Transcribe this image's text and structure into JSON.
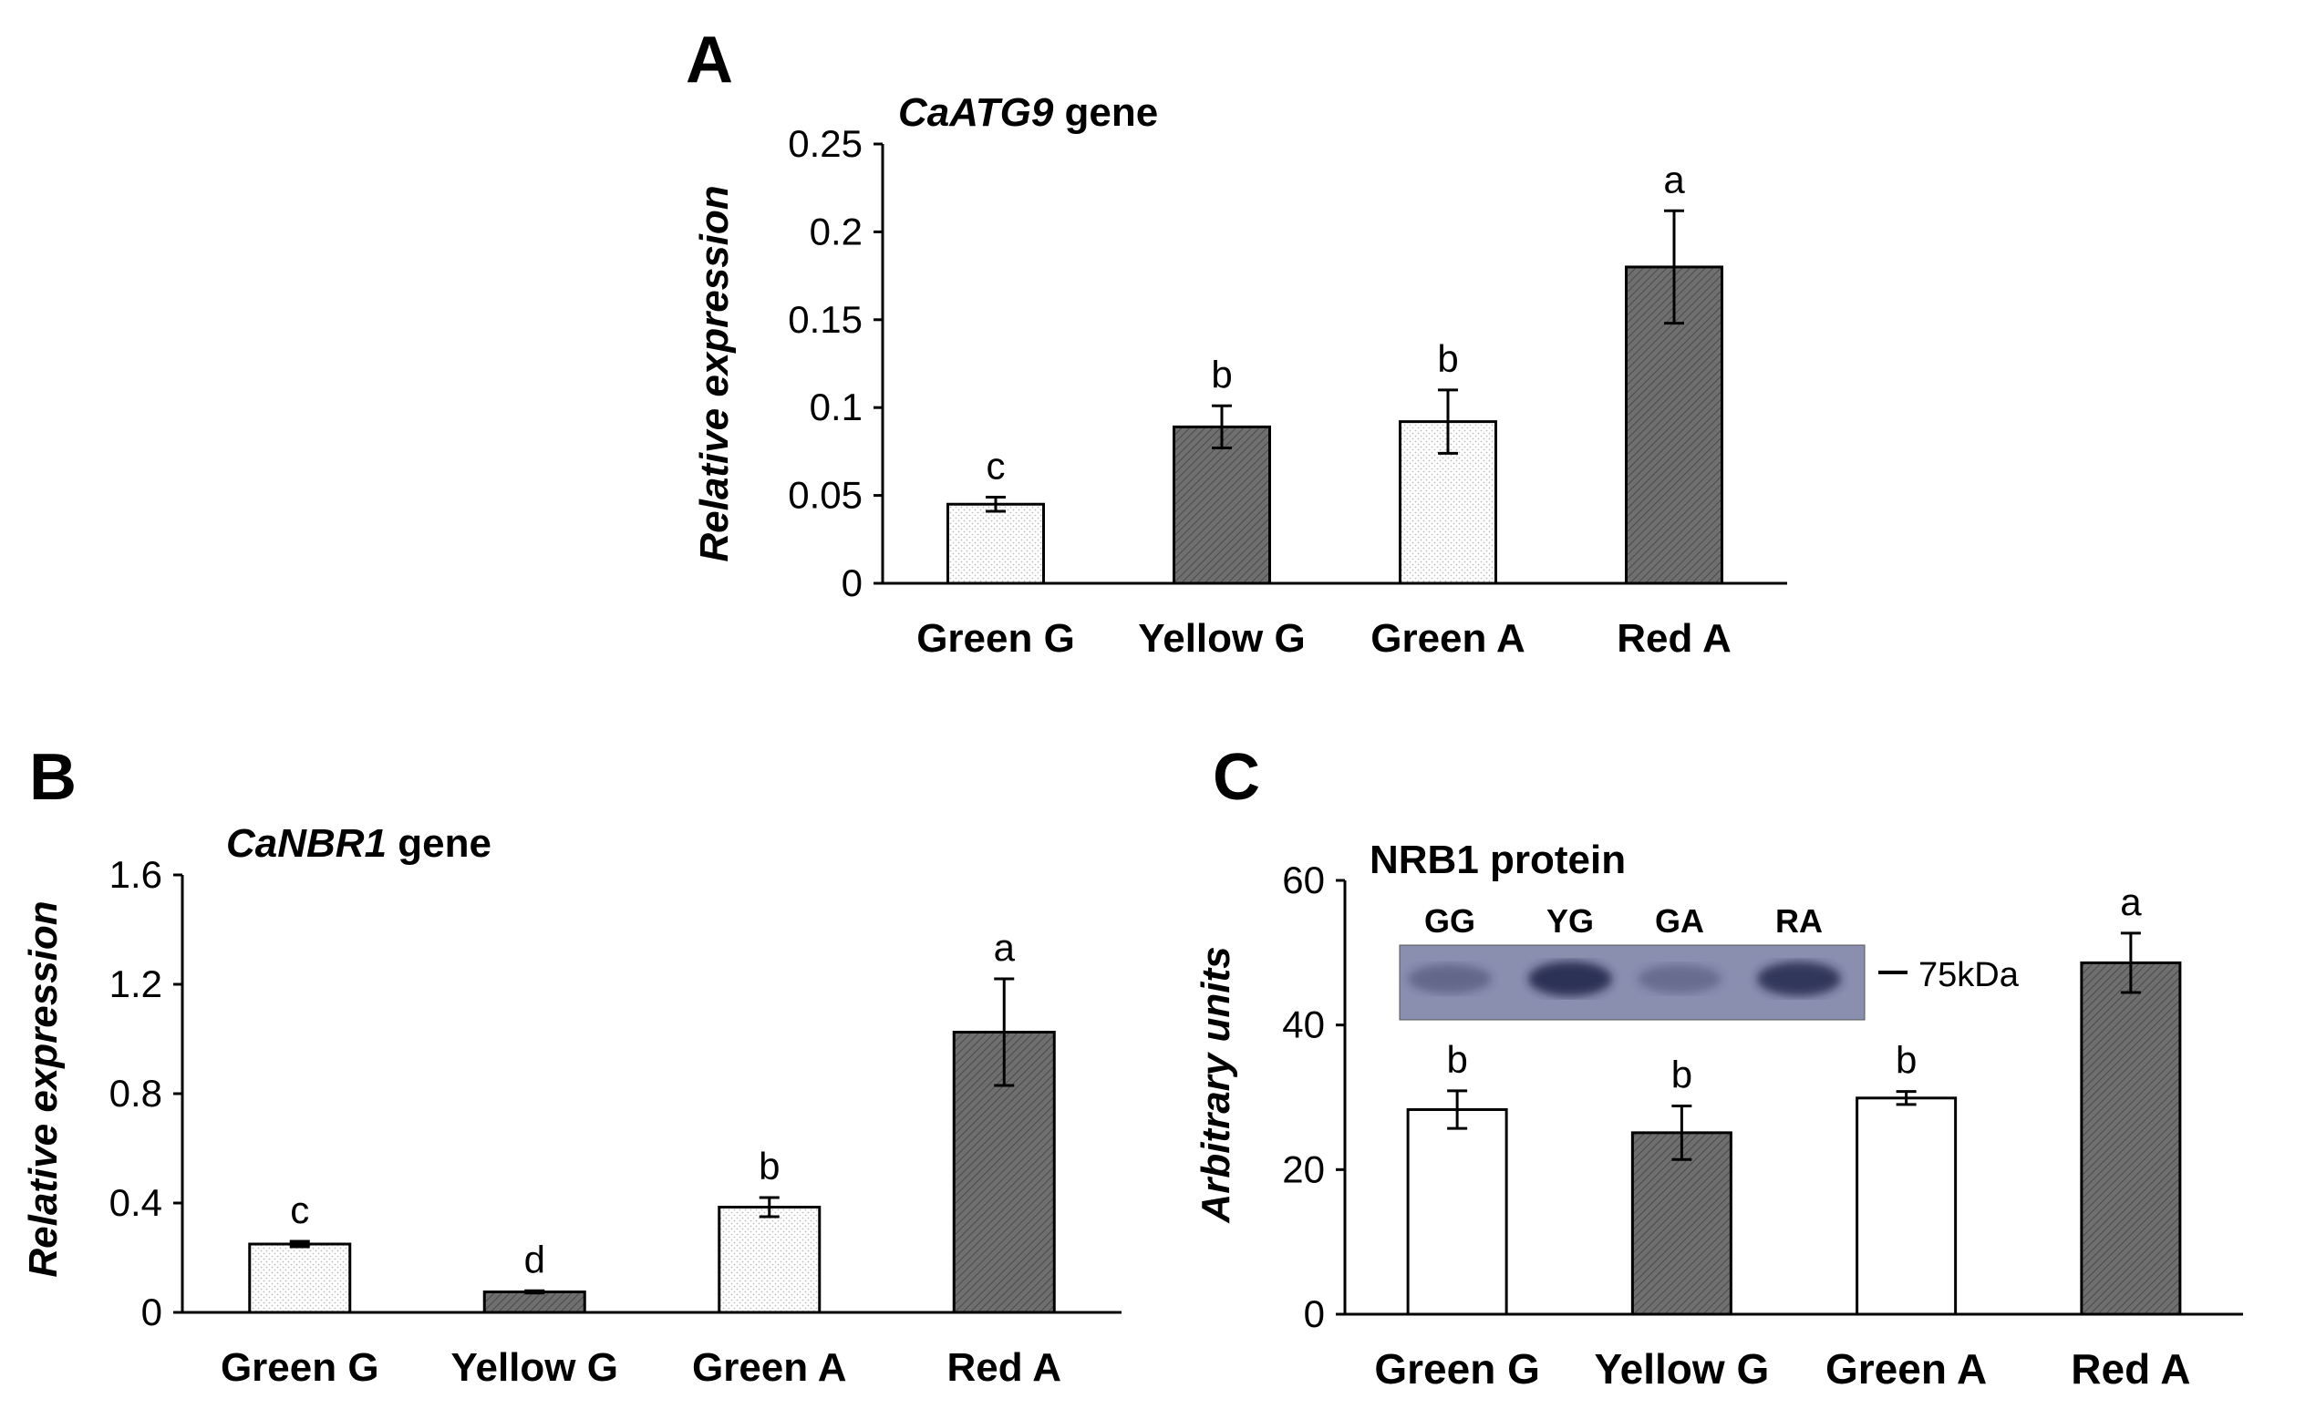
{
  "colors": {
    "light_bar": "#ffffff",
    "dark_bar": "#6f6f6f",
    "axis": "#000000",
    "blot_bg": "#8a8fb0",
    "band": "#1e2046"
  },
  "chart_data": [
    {
      "panel": "A",
      "type": "bar",
      "title_italic": "CaATG9",
      "title_rest": " gene",
      "ylabel": "Relative expression",
      "xlabel": "",
      "ylim": [
        0,
        0.25
      ],
      "yticks": [
        "0",
        "0.05",
        "0.1",
        "0.15",
        "0.2",
        "0.25"
      ],
      "categories": [
        "Green G",
        "Yellow G",
        "Green A",
        "Red A"
      ],
      "values": [
        0.045,
        0.089,
        0.092,
        0.18
      ],
      "errors": [
        0.004,
        0.012,
        0.018,
        0.032
      ],
      "letters": [
        "c",
        "b",
        "b",
        "a"
      ],
      "bar_styles": [
        "light",
        "dark",
        "light",
        "dark"
      ]
    },
    {
      "panel": "B",
      "type": "bar",
      "title_italic": "CaNBR1",
      "title_rest": " gene",
      "ylabel": "Relative expression",
      "xlabel": "",
      "ylim": [
        0,
        1.6
      ],
      "yticks": [
        "0",
        "0.4",
        "0.8",
        "1.2",
        "1.6"
      ],
      "categories": [
        "Green G",
        "Yellow G",
        "Green A",
        "Red A"
      ],
      "values": [
        0.25,
        0.075,
        0.385,
        1.025
      ],
      "errors": [
        0.01,
        0.004,
        0.035,
        0.195
      ],
      "letters": [
        "c",
        "d",
        "b",
        "a"
      ],
      "bar_styles": [
        "light",
        "dark",
        "light",
        "dark"
      ]
    },
    {
      "panel": "C",
      "type": "bar",
      "title_italic": "",
      "title_rest": "NRB1 protein",
      "ylabel": "Arbitrary units",
      "xlabel": "",
      "ylim": [
        0,
        60
      ],
      "yticks": [
        "0",
        "20",
        "40",
        "60"
      ],
      "categories": [
        "Green G",
        "Yellow G",
        "Green A",
        "Red A"
      ],
      "values": [
        28.3,
        25.1,
        29.9,
        48.6
      ],
      "errors": [
        2.6,
        3.7,
        0.9,
        4.1
      ],
      "letters": [
        "b",
        "b",
        "b",
        "a"
      ],
      "bar_styles": [
        "white",
        "dark",
        "white",
        "dark"
      ]
    }
  ],
  "blot": {
    "lanes": [
      "GG",
      "YG",
      "GA",
      "RA"
    ],
    "marker": "75kDa",
    "band_intensity": [
      0.35,
      0.85,
      0.3,
      0.8
    ]
  }
}
